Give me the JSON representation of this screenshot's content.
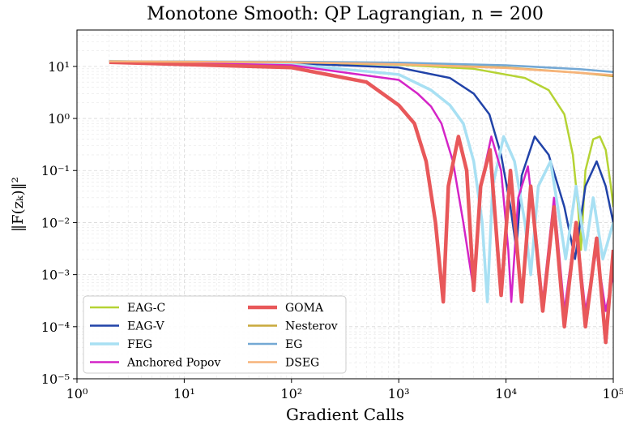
{
  "chart_data": {
    "type": "line",
    "title": "Monotone Smooth: QP Lagrangian,  n = 200",
    "xlabel": "Gradient Calls",
    "ylabel": "‖F(zₖ)‖²",
    "xscale": "log",
    "yscale": "log",
    "grid": true,
    "legend": "lower left",
    "xlim": [
      1,
      100000
    ],
    "ylim": [
      1e-05,
      50
    ],
    "xticks": [
      {
        "value": 1,
        "label": "10⁰"
      },
      {
        "value": 10,
        "label": "10¹"
      },
      {
        "value": 100,
        "label": "10²"
      },
      {
        "value": 1000,
        "label": "10³"
      },
      {
        "value": 10000,
        "label": "10⁴"
      },
      {
        "value": 100000,
        "label": "10⁵"
      }
    ],
    "yticks": [
      {
        "value": 1e-05,
        "label": "10⁻⁵"
      },
      {
        "value": 0.0001,
        "label": "10⁻⁴"
      },
      {
        "value": 0.001,
        "label": "10⁻³"
      },
      {
        "value": 0.01,
        "label": "10⁻²"
      },
      {
        "value": 0.1,
        "label": "10⁻¹"
      },
      {
        "value": 1,
        "label": "10⁰"
      },
      {
        "value": 10,
        "label": "10¹"
      }
    ],
    "series": [
      {
        "name": "EAG-C",
        "color": "#b5d334",
        "linewidth": 2.5,
        "x": [
          2,
          100,
          1000,
          5000,
          15000,
          25000,
          35000,
          42000,
          47000,
          50000,
          55000,
          65000,
          75000,
          85000,
          95000,
          100000
        ],
        "values": [
          12.5,
          11.8,
          10.8,
          9,
          6,
          3.5,
          1.2,
          0.2,
          0.02,
          0.003,
          0.1,
          0.4,
          0.45,
          0.25,
          0.05,
          0.02
        ]
      },
      {
        "name": "EAG-V",
        "color": "#2143a8",
        "linewidth": 2.5,
        "x": [
          2,
          100,
          1000,
          3000,
          5000,
          7000,
          9000,
          11000,
          12500,
          14000,
          18500,
          25000,
          35000,
          44000,
          55000,
          70000,
          85000,
          100000
        ],
        "values": [
          12.5,
          11.5,
          9.5,
          6,
          3,
          1.2,
          0.2,
          0.02,
          0.003,
          0.08,
          0.45,
          0.2,
          0.02,
          0.002,
          0.05,
          0.15,
          0.05,
          0.01
        ]
      },
      {
        "name": "FEG",
        "color": "#a8e0f3",
        "linewidth": 3.5,
        "x": [
          2,
          100,
          1000,
          2000,
          3000,
          4000,
          5000,
          6000,
          6700,
          7500,
          9500,
          12000,
          15000,
          17000,
          20000,
          26000,
          32000,
          36000,
          45000,
          55000,
          65000,
          80000,
          100000
        ],
        "values": [
          12.5,
          11,
          7,
          3.5,
          1.8,
          0.8,
          0.15,
          0.01,
          0.0003,
          0.05,
          0.45,
          0.15,
          0.01,
          0.001,
          0.05,
          0.15,
          0.01,
          0.002,
          0.05,
          0.003,
          0.03,
          0.002,
          0.01
        ]
      },
      {
        "name": "Anchored Popov",
        "color": "#d424c7",
        "linewidth": 2.5,
        "x": [
          2,
          100,
          1000,
          1500,
          2000,
          2500,
          3200,
          4000,
          5000,
          5800,
          7300,
          9000,
          10500,
          11200,
          13000,
          16000,
          19000,
          22000,
          28000,
          35000,
          45000,
          55000,
          70000,
          85000,
          100000
        ],
        "values": [
          12.5,
          10.5,
          5.5,
          3,
          1.7,
          0.8,
          0.15,
          0.01,
          0.0005,
          0.05,
          0.45,
          0.1,
          0.003,
          0.0003,
          0.03,
          0.12,
          0.005,
          0.0003,
          0.03,
          0.0002,
          0.01,
          0.0002,
          0.003,
          0.0002,
          0.001
        ]
      },
      {
        "name": "GOMA",
        "color": "#e8585a",
        "linewidth": 4.5,
        "x": [
          2,
          100,
          500,
          1000,
          1400,
          1800,
          2200,
          2600,
          2900,
          3600,
          4300,
          5000,
          5800,
          7100,
          9000,
          11000,
          14000,
          17000,
          22000,
          28000,
          35000,
          45000,
          55000,
          70000,
          85000,
          100000
        ],
        "values": [
          12,
          9.5,
          5,
          1.8,
          0.8,
          0.15,
          0.01,
          0.0003,
          0.05,
          0.45,
          0.1,
          0.0005,
          0.05,
          0.25,
          0.0004,
          0.1,
          0.0003,
          0.05,
          0.0002,
          0.02,
          0.0001,
          0.01,
          0.0001,
          0.005,
          5e-05,
          0.003
        ]
      },
      {
        "name": "Nesterov",
        "color": "#c9a93c",
        "linewidth": 2.5,
        "x": [
          2,
          100,
          1000,
          10000,
          50000,
          100000
        ],
        "values": [
          12.5,
          12,
          11,
          9.5,
          7.5,
          6.5
        ]
      },
      {
        "name": "EG",
        "color": "#74a8d4",
        "linewidth": 2.5,
        "x": [
          2,
          100,
          1000,
          10000,
          50000,
          100000
        ],
        "values": [
          12.5,
          12.3,
          11.8,
          10.5,
          8.8,
          7.8
        ]
      },
      {
        "name": "DSEG",
        "color": "#f7b37a",
        "linewidth": 2.5,
        "x": [
          2,
          100,
          1000,
          10000,
          50000,
          100000
        ],
        "values": [
          12.5,
          12,
          11,
          9.3,
          7.5,
          6.8
        ]
      }
    ]
  }
}
